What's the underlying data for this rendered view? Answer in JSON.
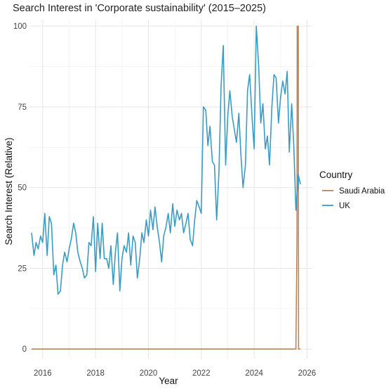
{
  "chart_data": {
    "type": "line",
    "title": "Search Interest in 'Corporate sustainability' (2015–2025)",
    "xlabel": "Year",
    "ylabel": "Search Interest (Relative)",
    "xlim": [
      2015.5,
      2026.2
    ],
    "ylim": [
      -3,
      102
    ],
    "x_ticks": [
      2016,
      2018,
      2020,
      2022,
      2024,
      2026
    ],
    "y_ticks": [
      0,
      25,
      50,
      75,
      100
    ],
    "grid": true,
    "legend": {
      "title": "Country",
      "position": "right"
    },
    "series": [
      {
        "name": "Saudi Arabia",
        "color": "#b8865a",
        "points": [
          [
            2015.58,
            0
          ],
          [
            2025.58,
            0
          ],
          [
            2025.62,
            34
          ],
          [
            2025.63,
            100
          ],
          [
            2025.67,
            100
          ],
          [
            2025.68,
            0
          ],
          [
            2025.75,
            0
          ]
        ]
      },
      {
        "name": "UK",
        "color": "#3a9cc5",
        "points": [
          [
            2015.58,
            36
          ],
          [
            2015.67,
            29
          ],
          [
            2015.75,
            33
          ],
          [
            2015.83,
            31
          ],
          [
            2015.92,
            35
          ],
          [
            2016.0,
            33
          ],
          [
            2016.08,
            42
          ],
          [
            2016.17,
            29
          ],
          [
            2016.25,
            41
          ],
          [
            2016.33,
            39
          ],
          [
            2016.42,
            23
          ],
          [
            2016.5,
            26
          ],
          [
            2016.58,
            17
          ],
          [
            2016.67,
            18
          ],
          [
            2016.75,
            26
          ],
          [
            2016.83,
            30
          ],
          [
            2016.92,
            27
          ],
          [
            2017.0,
            31
          ],
          [
            2017.08,
            34
          ],
          [
            2017.17,
            39
          ],
          [
            2017.25,
            36
          ],
          [
            2017.33,
            30
          ],
          [
            2017.42,
            27
          ],
          [
            2017.5,
            25
          ],
          [
            2017.58,
            22
          ],
          [
            2017.67,
            23
          ],
          [
            2017.75,
            33
          ],
          [
            2017.83,
            32
          ],
          [
            2017.92,
            41
          ],
          [
            2018.0,
            24
          ],
          [
            2018.08,
            39
          ],
          [
            2018.17,
            28
          ],
          [
            2018.25,
            39
          ],
          [
            2018.33,
            28
          ],
          [
            2018.42,
            28
          ],
          [
            2018.5,
            25
          ],
          [
            2018.58,
            32
          ],
          [
            2018.67,
            20
          ],
          [
            2018.75,
            30
          ],
          [
            2018.83,
            36
          ],
          [
            2018.92,
            18
          ],
          [
            2019.0,
            28
          ],
          [
            2019.08,
            32
          ],
          [
            2019.17,
            30
          ],
          [
            2019.25,
            36
          ],
          [
            2019.33,
            26
          ],
          [
            2019.42,
            35
          ],
          [
            2019.5,
            33
          ],
          [
            2019.58,
            22
          ],
          [
            2019.67,
            28
          ],
          [
            2019.75,
            36
          ],
          [
            2019.83,
            33
          ],
          [
            2019.92,
            40
          ],
          [
            2020.0,
            35
          ],
          [
            2020.08,
            43
          ],
          [
            2020.17,
            37
          ],
          [
            2020.25,
            44
          ],
          [
            2020.33,
            38
          ],
          [
            2020.42,
            33
          ],
          [
            2020.5,
            27
          ],
          [
            2020.58,
            35
          ],
          [
            2020.67,
            38
          ],
          [
            2020.75,
            42
          ],
          [
            2020.83,
            36
          ],
          [
            2020.92,
            45
          ],
          [
            2021.0,
            38
          ],
          [
            2021.08,
            43
          ],
          [
            2021.17,
            40
          ],
          [
            2021.25,
            42
          ],
          [
            2021.33,
            36
          ],
          [
            2021.42,
            39
          ],
          [
            2021.5,
            42
          ],
          [
            2021.58,
            34
          ],
          [
            2021.67,
            32
          ],
          [
            2021.75,
            40
          ],
          [
            2021.83,
            46
          ],
          [
            2021.92,
            44
          ],
          [
            2022.0,
            42
          ],
          [
            2022.08,
            75
          ],
          [
            2022.17,
            74
          ],
          [
            2022.25,
            63
          ],
          [
            2022.33,
            69
          ],
          [
            2022.42,
            58
          ],
          [
            2022.5,
            57
          ],
          [
            2022.58,
            40
          ],
          [
            2022.67,
            55
          ],
          [
            2022.75,
            82
          ],
          [
            2022.83,
            94
          ],
          [
            2022.92,
            57
          ],
          [
            2023.0,
            72
          ],
          [
            2023.08,
            80
          ],
          [
            2023.17,
            72
          ],
          [
            2023.25,
            68
          ],
          [
            2023.33,
            64
          ],
          [
            2023.42,
            73
          ],
          [
            2023.5,
            60
          ],
          [
            2023.58,
            50
          ],
          [
            2023.67,
            57
          ],
          [
            2023.75,
            80
          ],
          [
            2023.83,
            85
          ],
          [
            2023.92,
            72
          ],
          [
            2024.0,
            62
          ],
          [
            2024.08,
            100
          ],
          [
            2024.17,
            88
          ],
          [
            2024.25,
            70
          ],
          [
            2024.33,
            76
          ],
          [
            2024.42,
            62
          ],
          [
            2024.5,
            66
          ],
          [
            2024.58,
            57
          ],
          [
            2024.67,
            75
          ],
          [
            2024.75,
            85
          ],
          [
            2024.83,
            84
          ],
          [
            2024.92,
            70
          ],
          [
            2025.0,
            78
          ],
          [
            2025.08,
            83
          ],
          [
            2025.17,
            79
          ],
          [
            2025.25,
            86
          ],
          [
            2025.33,
            61
          ],
          [
            2025.42,
            76
          ],
          [
            2025.5,
            63
          ],
          [
            2025.58,
            43
          ],
          [
            2025.67,
            54
          ],
          [
            2025.75,
            51
          ]
        ]
      }
    ]
  }
}
